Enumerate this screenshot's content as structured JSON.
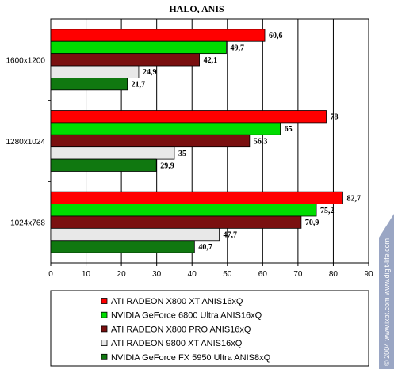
{
  "chart_data": {
    "type": "bar",
    "orientation": "horizontal",
    "title": "HALO, ANIS",
    "categories": [
      "1600x1200",
      "1280x1024",
      "1024x768"
    ],
    "series": [
      {
        "name": "ATI RADEON X800 XT ANIS16xQ",
        "color": "#ff0000",
        "labels": [
          "60,6",
          "78",
          "82,7"
        ],
        "values": [
          60.6,
          78,
          82.7
        ]
      },
      {
        "name": "NVIDIA GeForce 6800 Ultra ANIS16xQ",
        "color": "#00dd00",
        "labels": [
          "49,7",
          "65",
          "75,2"
        ],
        "values": [
          49.7,
          65,
          75.2
        ]
      },
      {
        "name": "ATI RADEON X800 PRO ANIS16xQ",
        "color": "#7a1010",
        "labels": [
          "42,1",
          "56,3",
          "70,9"
        ],
        "values": [
          42.1,
          56.3,
          70.9
        ]
      },
      {
        "name": "ATI RADEON 9800 XT ANIS16xQ",
        "color": "#e8e8e8",
        "labels": [
          "24,9",
          "35",
          "47,7"
        ],
        "values": [
          24.9,
          35,
          47.7
        ]
      },
      {
        "name": "NVIDIA GeForce FX 5950 Ultra ANIS8xQ",
        "color": "#107810",
        "labels": [
          "21,7",
          "29,9",
          "40,7"
        ],
        "values": [
          21.7,
          29.9,
          40.7
        ]
      }
    ],
    "xlim": [
      0,
      90
    ],
    "x_ticks": [
      "0",
      "10",
      "20",
      "30",
      "40",
      "50",
      "60",
      "70",
      "80",
      "90"
    ],
    "grid": true,
    "legend_position": "bottom"
  },
  "watermark": "© 2004 www.ixbt.com  www.digit-life.com"
}
